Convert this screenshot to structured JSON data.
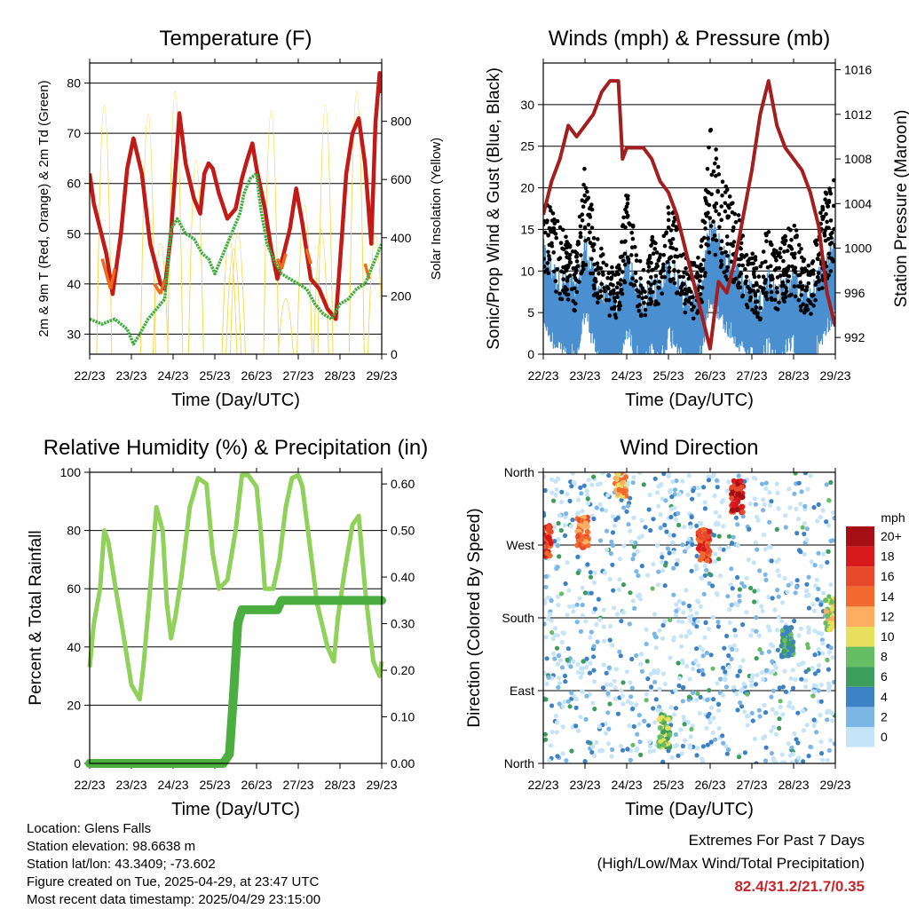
{
  "x_ticks": [
    "22/23",
    "23/23",
    "24/23",
    "25/23",
    "26/23",
    "27/23",
    "28/23",
    "29/23"
  ],
  "x_label": "Time (Day/UTC)",
  "info": {
    "location": "Location: Glens Falls",
    "elevation": "Station elevation: 98.6638 m",
    "latlon": "Station lat/lon: 43.3409; -73.602",
    "created": "Figure created on Tue, 2025-04-29, at 23:47 UTC",
    "recent": "Most recent data timestamp: 2025/04/29 23:15:00"
  },
  "extremes": {
    "title": "Extremes For Past 7 Days",
    "subtitle": "(High/Low/Max Wind/Total Precipitation)",
    "values": "82.4/31.2/21.7/0.35"
  },
  "chart_data": [
    {
      "type": "line",
      "title": "Temperature (F)",
      "xlabel": "Time (Day/UTC)",
      "ylabel": "2m & 9m T (Red, Orange) & 2m Td (Green)",
      "ylabel_right": "Solar Insolation (Yellow)",
      "x_range_days": [
        0,
        7
      ],
      "ylim": [
        26,
        84
      ],
      "yticks": [
        30,
        40,
        50,
        60,
        70,
        80
      ],
      "ylim_right": [
        0,
        1000
      ],
      "yticks_right": [
        0,
        200,
        400,
        600,
        800
      ],
      "grid": true,
      "series": [
        {
          "color": "#c21b17",
          "x": [
            0,
            0.1,
            0.25,
            0.4,
            0.55,
            0.75,
            0.9,
            1.05,
            1.25,
            1.45,
            1.7,
            1.8,
            1.95,
            2.05,
            2.15,
            2.3,
            2.5,
            2.65,
            2.75,
            2.85,
            2.95,
            3.1,
            3.3,
            3.5,
            3.65,
            3.75,
            3.9,
            4.0,
            4.2,
            4.35,
            4.5,
            4.65,
            4.8,
            4.95,
            5.1,
            5.3,
            5.5,
            5.7,
            5.9,
            6.05,
            6.15,
            6.3,
            6.45,
            6.6,
            6.75,
            6.85,
            6.95,
            7.0
          ],
          "y": [
            62,
            56,
            51,
            46,
            38,
            50,
            63,
            69,
            62,
            48,
            40,
            39,
            50,
            62,
            74,
            64,
            57,
            54,
            62,
            64,
            63,
            58,
            53,
            55,
            61,
            64,
            68,
            63,
            55,
            47,
            41,
            46,
            51,
            59,
            52,
            41,
            39,
            35,
            33,
            50,
            62,
            70,
            73,
            64,
            48,
            72,
            82,
            78
          ]
        },
        {
          "color": "#f06a1a",
          "x": [
            0.3,
            0.4,
            0.5,
            0.6,
            1.55,
            1.7,
            1.8,
            4.5,
            4.6,
            4.7,
            5.2,
            5.3,
            5.5,
            6.6,
            6.7
          ],
          "y": [
            45,
            42,
            39,
            43,
            40,
            38,
            41,
            45,
            43,
            46,
            47,
            44,
            40,
            44,
            41
          ]
        },
        {
          "color": "#3fae3f",
          "x": [
            0,
            0.3,
            0.6,
            0.9,
            1.05,
            1.2,
            1.4,
            1.6,
            1.8,
            1.95,
            2.1,
            2.3,
            2.5,
            2.7,
            2.85,
            3.0,
            3.2,
            3.4,
            3.6,
            3.7,
            3.85,
            4.0,
            4.1,
            4.25,
            4.4,
            4.6,
            4.8,
            5.0,
            5.2,
            5.4,
            5.6,
            5.8,
            6.0,
            6.2,
            6.4,
            6.6,
            6.8,
            6.95,
            7.0
          ],
          "y": [
            33,
            32,
            33,
            31,
            28,
            30,
            33,
            35,
            37,
            51,
            53,
            50,
            49,
            46,
            45,
            42,
            46,
            50,
            54,
            58,
            61,
            62,
            55,
            48,
            45,
            42,
            41,
            40,
            39,
            36,
            34,
            33,
            36,
            37,
            39,
            40,
            44,
            47,
            48
          ]
        }
      ],
      "solar_peaks": [
        {
          "x": 0.35,
          "w": 900
        },
        {
          "x": 1.4,
          "w": 870
        },
        {
          "x": 1.7,
          "w": 400
        },
        {
          "x": 2.05,
          "w": 950
        },
        {
          "x": 2.55,
          "w": 700
        },
        {
          "x": 3.35,
          "w": 420
        },
        {
          "x": 3.45,
          "w": 380
        },
        {
          "x": 3.55,
          "w": 440
        },
        {
          "x": 4.35,
          "w": 880
        },
        {
          "x": 4.7,
          "w": 200
        },
        {
          "x": 5.15,
          "w": 540
        },
        {
          "x": 5.55,
          "w": 450
        },
        {
          "x": 5.65,
          "w": 900
        },
        {
          "x": 6.4,
          "w": 950
        },
        {
          "x": 6.85,
          "w": 430
        }
      ]
    },
    {
      "type": "scatter",
      "title": "Winds (mph) & Pressure (mb)",
      "xlabel": "Time (Day/UTC)",
      "ylabel": "Sonic/Prop Wind & Gust (Blue, Black)",
      "ylabel_right": "Station Pressure (Maroon)",
      "x_range_days": [
        0,
        7
      ],
      "ylim": [
        0,
        35
      ],
      "yticks": [
        0,
        5,
        10,
        15,
        20,
        25,
        30
      ],
      "ylim_right": [
        990.5,
        1016.6
      ],
      "yticks_right": [
        992,
        996,
        1000,
        1004,
        1008,
        1012,
        1016
      ],
      "grid": true,
      "wind_envelope": {
        "x": [
          0,
          0.3,
          0.6,
          0.8,
          1.0,
          1.2,
          1.4,
          1.6,
          1.8,
          2.0,
          2.2,
          2.4,
          2.6,
          2.8,
          3.0,
          3.2,
          3.4,
          3.6,
          3.8,
          4.0,
          4.2,
          4.4,
          4.6,
          4.8,
          5.0,
          5.2,
          5.4,
          5.6,
          5.8,
          6.0,
          6.2,
          6.4,
          6.6,
          6.8,
          7.0
        ],
        "mean": [
          9,
          6,
          5,
          4,
          10,
          6,
          4,
          3,
          3,
          8,
          5,
          3,
          5,
          4,
          7,
          6,
          4,
          3,
          5,
          12,
          10,
          8,
          7,
          5,
          4,
          3,
          6,
          4,
          5,
          6,
          4,
          3,
          6,
          8,
          10
        ]
      },
      "pressure": {
        "x": [
          0,
          0.2,
          0.4,
          0.6,
          0.8,
          1.0,
          1.2,
          1.4,
          1.6,
          1.8,
          1.9,
          2.0,
          2.2,
          2.4,
          2.6,
          2.8,
          3.0,
          3.2,
          3.4,
          3.6,
          3.8,
          4.0,
          4.2,
          4.4,
          4.6,
          4.8,
          5.0,
          5.2,
          5.4,
          5.6,
          5.8,
          6.0,
          6.2,
          6.4,
          6.6,
          6.8,
          7.0
        ],
        "y": [
          1003,
          1006,
          1008,
          1011,
          1010,
          1011,
          1012,
          1014,
          1015,
          1015,
          1008,
          1009,
          1009,
          1009,
          1008,
          1006,
          1005,
          1003,
          1000,
          997,
          994,
          991,
          997,
          996,
          999,
          1003,
          1007,
          1012,
          1015,
          1011,
          1009,
          1008,
          1007,
          1005,
          1002,
          996,
          993
        ]
      }
    },
    {
      "type": "line",
      "title": "Relative Humidity (%) & Precipitation (in)",
      "xlabel": "Time (Day/UTC)",
      "ylabel": "Percent & Total Rainfall",
      "x_range_days": [
        0,
        7
      ],
      "ylim": [
        0,
        100
      ],
      "yticks": [
        0,
        20,
        40,
        60,
        80,
        100
      ],
      "ylim_right": [
        0,
        0.625
      ],
      "yticks_right": [
        "0.00",
        "0.10",
        "0.20",
        "0.30",
        "0.40",
        "0.50",
        "0.60"
      ],
      "grid": true,
      "series": [
        {
          "color": "#8fd15a",
          "x": [
            0,
            0.1,
            0.25,
            0.35,
            0.45,
            0.6,
            0.8,
            1.0,
            1.2,
            1.3,
            1.45,
            1.6,
            1.75,
            1.85,
            1.95,
            2.05,
            2.2,
            2.4,
            2.6,
            2.8,
            2.95,
            3.1,
            3.3,
            3.5,
            3.65,
            3.8,
            4.0,
            4.1,
            4.2,
            4.4,
            4.55,
            4.7,
            4.85,
            5.0,
            5.1,
            5.25,
            5.45,
            5.7,
            5.85,
            5.95,
            6.1,
            6.3,
            6.45,
            6.6,
            6.8,
            6.95,
            7.0
          ],
          "y": [
            33,
            48,
            60,
            80,
            76,
            62,
            45,
            27,
            22,
            35,
            60,
            88,
            80,
            55,
            43,
            50,
            64,
            88,
            98,
            96,
            72,
            60,
            63,
            80,
            99,
            99,
            95,
            80,
            60,
            60,
            70,
            88,
            98,
            99,
            95,
            78,
            55,
            40,
            35,
            50,
            65,
            82,
            85,
            60,
            35,
            30,
            35
          ]
        },
        {
          "color": "#4cae3f",
          "x": [
            0,
            3.2,
            3.35,
            3.45,
            3.55,
            3.65,
            4.0,
            4.5,
            4.6,
            4.8,
            7.0
          ],
          "y": [
            0,
            0,
            0.02,
            0.15,
            0.3,
            0.33,
            0.33,
            0.33,
            0.35,
            0.35,
            0.35
          ]
        }
      ]
    },
    {
      "type": "scatter",
      "title": "Wind Direction",
      "xlabel": "Time (Day/UTC)",
      "ylabel": "Direction (Colored By Speed)",
      "x_range_days": [
        0,
        7
      ],
      "ylim": [
        0,
        360
      ],
      "yticks": [
        "North",
        "East",
        "South",
        "West",
        "North"
      ],
      "grid": true,
      "legend": {
        "title": "mph",
        "labels": [
          "20+",
          "18",
          "16",
          "14",
          "12",
          "10",
          "8",
          "6",
          "4",
          "2",
          "0"
        ],
        "colors": [
          "#a50f15",
          "#d7191c",
          "#e8492a",
          "#f26a2e",
          "#fdae61",
          "#e8e05c",
          "#66bd63",
          "#3c9e5a",
          "#3c82c4",
          "#7ab6e6",
          "#c6e4f7"
        ]
      },
      "clusters": [
        {
          "x": 0.05,
          "d": 275,
          "c": 1
        },
        {
          "x": 0.95,
          "d": 285,
          "c": 2
        },
        {
          "x": 1.85,
          "d": 350,
          "c": 3
        },
        {
          "x": 3.85,
          "d": 270,
          "c": 1
        },
        {
          "x": 4.65,
          "d": 330,
          "c": 0
        },
        {
          "x": 6.9,
          "d": 185,
          "c": 4
        },
        {
          "x": 2.9,
          "d": 40,
          "c": 5
        },
        {
          "x": 5.85,
          "d": 150,
          "c": 6
        }
      ]
    }
  ]
}
